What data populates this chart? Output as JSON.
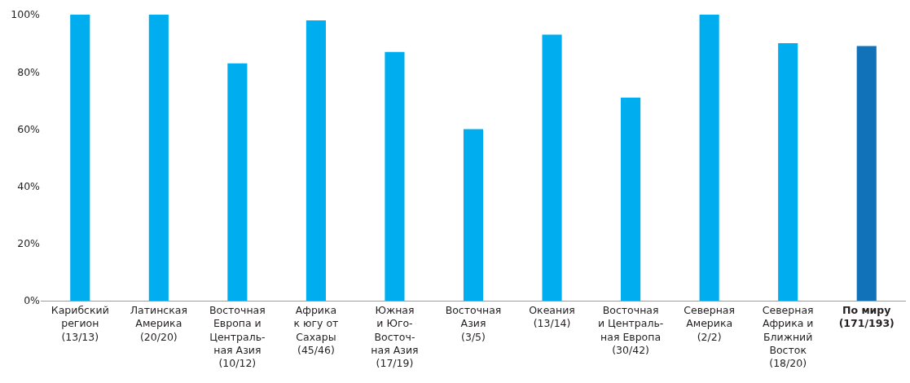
{
  "chart_data": {
    "type": "bar",
    "categories": [
      "Карибский\nрегион\n(13/13)",
      "Латинская\nАмерика\n(20/20)",
      "Восточная\nЕвропа и\nЦентраль-\nная Азия\n(10/12)",
      "Африка\nк югу от\nСахары\n(45/46)",
      "Южная\nи Юго-\nВосточ-\nная Азия\n(17/19)",
      "Восточная\nАзия\n(3/5)",
      "Океания\n(13/14)",
      "Восточная\nи Централь-\nная Европа\n(30/42)",
      "Северная\nАмерика\n(2/2)",
      "Северная\nАфрика и\nБлижний\nВосток\n(18/20)",
      "По миру\n(171/193)"
    ],
    "values": [
      100,
      100,
      83,
      98,
      87,
      60,
      93,
      71,
      100,
      90,
      89
    ],
    "colors": [
      "#00aeef",
      "#00aeef",
      "#00aeef",
      "#00aeef",
      "#00aeef",
      "#00aeef",
      "#00aeef",
      "#00aeef",
      "#00aeef",
      "#00aeef",
      "#1172ba"
    ],
    "ylim": [
      0,
      100
    ],
    "yticks": [
      {
        "value": 0,
        "label": "0%"
      },
      {
        "value": 20,
        "label": "20%"
      },
      {
        "value": 40,
        "label": "40%"
      },
      {
        "value": 60,
        "label": "60%"
      },
      {
        "value": 80,
        "label": "80%"
      },
      {
        "value": 100,
        "label": "100%"
      }
    ],
    "grid": false,
    "legend": false
  }
}
